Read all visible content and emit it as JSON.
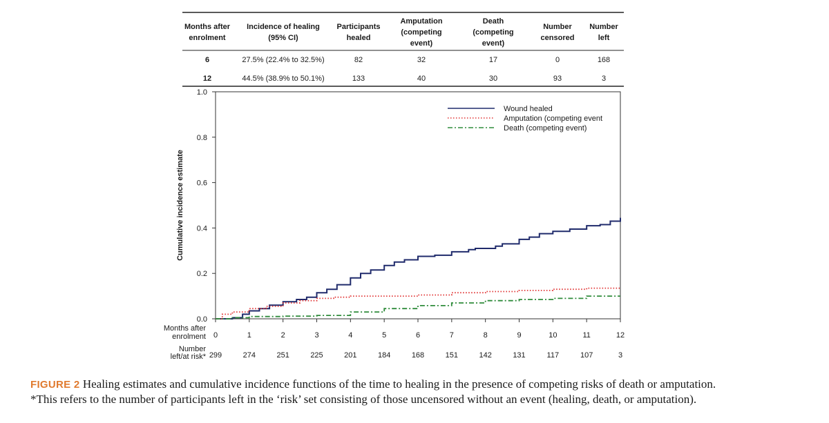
{
  "table": {
    "headers": [
      [
        "Months after",
        "enrolment"
      ],
      [
        "Incidence of healing",
        "(95% CI)"
      ],
      [
        "Participants",
        "healed"
      ],
      [
        "Amputation",
        "(competing",
        "event)"
      ],
      [
        "Death",
        "(competing",
        "event)"
      ],
      [
        "Number",
        "censored"
      ],
      [
        "Number",
        "left"
      ]
    ],
    "rows": [
      [
        "6",
        "27.5% (22.4% to 32.5%)",
        "82",
        "32",
        "17",
        "0",
        "168"
      ],
      [
        "12",
        "44.5% (38.9% to 50.1%)",
        "133",
        "40",
        "30",
        "93",
        "3"
      ]
    ]
  },
  "chart_data": {
    "type": "line",
    "title": "",
    "xlabel": "Months after enrolment",
    "ylabel": "Cumulative incidence estimate",
    "xlim": [
      0,
      12
    ],
    "ylim": [
      0,
      1
    ],
    "x_ticks": [
      0,
      1,
      2,
      3,
      4,
      5,
      6,
      7,
      8,
      9,
      10,
      11,
      12
    ],
    "y_ticks": [
      "0.0",
      "0.2",
      "0.4",
      "0.6",
      "0.8",
      "1.0"
    ],
    "legend_position": "top-right",
    "series": [
      {
        "name": "Wound healed",
        "style": "solid",
        "color": "#1f2a6b",
        "x": [
          0,
          0.5,
          0.8,
          1.0,
          1.3,
          1.6,
          2.0,
          2.4,
          2.7,
          3.0,
          3.3,
          3.6,
          4.0,
          4.3,
          4.6,
          5.0,
          5.3,
          5.6,
          6.0,
          6.5,
          7.0,
          7.5,
          7.7,
          8.3,
          8.5,
          9.0,
          9.3,
          9.6,
          10.0,
          10.5,
          11.0,
          11.4,
          11.7,
          12.0
        ],
        "y": [
          0,
          0.005,
          0.02,
          0.035,
          0.045,
          0.06,
          0.075,
          0.085,
          0.095,
          0.115,
          0.13,
          0.15,
          0.18,
          0.2,
          0.215,
          0.235,
          0.25,
          0.26,
          0.275,
          0.28,
          0.295,
          0.305,
          0.31,
          0.32,
          0.33,
          0.35,
          0.36,
          0.375,
          0.385,
          0.395,
          0.41,
          0.415,
          0.43,
          0.445
        ]
      },
      {
        "name": "Amputation (competing event",
        "style": "dotted",
        "color": "#e03030",
        "x": [
          0,
          0.2,
          0.5,
          1.0,
          1.5,
          2.0,
          2.5,
          3.0,
          3.5,
          4.0,
          5.0,
          6.0,
          7.0,
          8.0,
          9.0,
          10.0,
          11.0,
          12.0
        ],
        "y": [
          0,
          0.02,
          0.03,
          0.045,
          0.055,
          0.07,
          0.08,
          0.09,
          0.095,
          0.1,
          0.1,
          0.105,
          0.115,
          0.12,
          0.125,
          0.13,
          0.135,
          0.135
        ]
      },
      {
        "name": "Death (competing event)",
        "style": "dashdot",
        "color": "#2e8b3a",
        "x": [
          0,
          0.5,
          1.0,
          2.0,
          3.0,
          4.0,
          5.0,
          6.0,
          7.0,
          8.0,
          9.0,
          10.0,
          11.0,
          12.0
        ],
        "y": [
          0,
          0.005,
          0.01,
          0.012,
          0.015,
          0.03,
          0.045,
          0.058,
          0.07,
          0.08,
          0.085,
          0.09,
          0.1,
          0.1
        ]
      }
    ],
    "at_risk": {
      "x_label": [
        "Months after",
        "enrolment"
      ],
      "risk_label": [
        "Number",
        "left/at risk*"
      ],
      "values": [
        "299",
        "274",
        "251",
        "225",
        "201",
        "184",
        "168",
        "151",
        "142",
        "131",
        "117",
        "107",
        "3"
      ]
    }
  },
  "caption": {
    "label": "FIGURE 2",
    "text": "Healing estimates and cumulative incidence functions of the time to healing in the presence of competing risks of death or amputation.",
    "footnote": "*This refers to the number of participants left in the ‘risk’ set consisting of those uncensored without an event (healing, death, or amputation)."
  }
}
